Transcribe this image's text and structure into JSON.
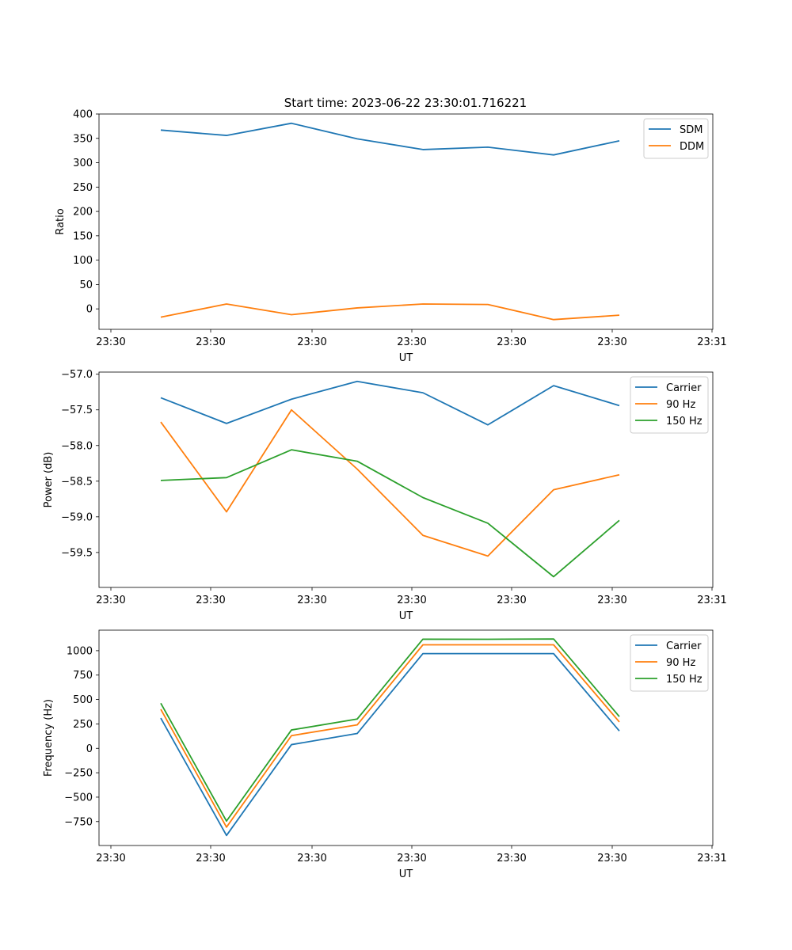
{
  "figure": {
    "title": "Start time: 2023-06-22 23:30:01.716221"
  },
  "chart_data": [
    {
      "type": "line",
      "xlabel": "UT",
      "ylabel": "Ratio",
      "x_tick_labels": [
        "23:30",
        "23:30",
        "23:30",
        "23:30",
        "23:30",
        "23:30",
        "23:31"
      ],
      "y_ticks": [
        0,
        50,
        100,
        150,
        200,
        250,
        300,
        350,
        400
      ],
      "ylim": [
        -42,
        400
      ],
      "legend_position": "top-right",
      "series": [
        {
          "name": "SDM",
          "color": "#1f77b4",
          "values": [
            367,
            356,
            381,
            349,
            327,
            332,
            316,
            345
          ]
        },
        {
          "name": "DDM",
          "color": "#ff7f0e",
          "values": [
            -17,
            10,
            -12,
            2,
            10,
            9,
            -22,
            -13
          ]
        }
      ]
    },
    {
      "type": "line",
      "xlabel": "UT",
      "ylabel": "Power (dB)",
      "x_tick_labels": [
        "23:30",
        "23:30",
        "23:30",
        "23:30",
        "23:30",
        "23:30",
        "23:31"
      ],
      "y_ticks": [
        -59.5,
        -59.0,
        -58.5,
        -58.0,
        -57.5,
        -57.0
      ],
      "y_tick_labels": [
        "−59.5",
        "−59.0",
        "−58.5",
        "−58.0",
        "−57.5",
        "−57.0"
      ],
      "ylim": [
        -59.99,
        -56.97
      ],
      "legend_position": "top-right",
      "series": [
        {
          "name": "Carrier",
          "color": "#1f77b4",
          "values": [
            -57.33,
            -57.69,
            -57.35,
            -57.1,
            -57.26,
            -57.71,
            -57.16,
            -57.44
          ]
        },
        {
          "name": "90 Hz",
          "color": "#ff7f0e",
          "values": [
            -57.67,
            -58.93,
            -57.5,
            -58.33,
            -59.26,
            -59.55,
            -58.62,
            -58.41
          ]
        },
        {
          "name": "150 Hz",
          "color": "#2ca02c",
          "values": [
            -58.49,
            -58.45,
            -58.06,
            -58.22,
            -58.73,
            -59.09,
            -59.84,
            -59.05
          ]
        }
      ]
    },
    {
      "type": "line",
      "xlabel": "UT",
      "ylabel": "Frequency (Hz)",
      "x_tick_labels": [
        "23:30",
        "23:30",
        "23:30",
        "23:30",
        "23:30",
        "23:30",
        "23:31"
      ],
      "y_ticks": [
        -750,
        -500,
        -250,
        0,
        250,
        500,
        750,
        1000
      ],
      "y_tick_labels": [
        "−750",
        "−500",
        "−250",
        "0",
        "250",
        "500",
        "750",
        "1000"
      ],
      "ylim": [
        -995,
        1210
      ],
      "legend_position": "top-right",
      "series": [
        {
          "name": "Carrier",
          "color": "#1f77b4",
          "values": [
            310,
            -892,
            38,
            152,
            970,
            970,
            970,
            178
          ]
        },
        {
          "name": "90 Hz",
          "color": "#ff7f0e",
          "values": [
            400,
            -807,
            130,
            240,
            1060,
            1060,
            1060,
            270
          ]
        },
        {
          "name": "150 Hz",
          "color": "#2ca02c",
          "values": [
            462,
            -745,
            188,
            300,
            1118,
            1117,
            1120,
            325
          ]
        }
      ]
    }
  ]
}
